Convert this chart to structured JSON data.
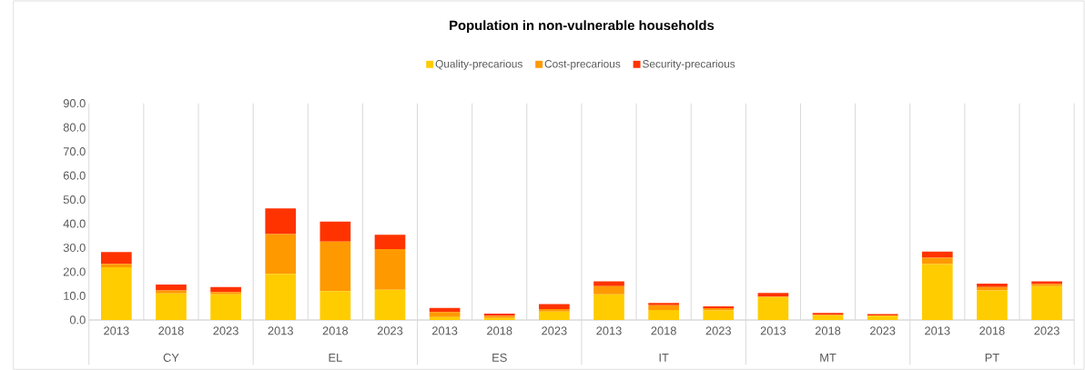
{
  "chart_data": {
    "type": "bar",
    "title": "Population in non-vulnerable households",
    "categories": [
      "2013",
      "2018",
      "2023",
      "2013",
      "2018",
      "2023",
      "2013",
      "2018",
      "2023",
      "2013",
      "2018",
      "2023",
      "2013",
      "2018",
      "2023",
      "2013",
      "2018",
      "2023"
    ],
    "annotations": [
      "CY",
      "EL",
      "ES",
      "IT",
      "MT",
      "PT"
    ],
    "stacked": true,
    "series": [
      {
        "name": "Quality-precarious",
        "color": "#ffcc00",
        "values": [
          21.9,
          11.0,
          10.6,
          19.1,
          12.0,
          12.5,
          1.2,
          0.8,
          3.5,
          10.6,
          4.1,
          3.9,
          9.5,
          2.0,
          1.8,
          23.2,
          12.2,
          14.0
        ]
      },
      {
        "name": "Cost-precarious",
        "color": "#ff9900",
        "values": [
          1.4,
          1.2,
          1.0,
          16.6,
          20.5,
          16.9,
          2.1,
          0.9,
          1.0,
          3.4,
          2.0,
          1.0,
          0.2,
          null,
          null,
          2.6,
          1.5,
          0.9
        ]
      },
      {
        "name": "Security-precarious",
        "color": "#ff3300",
        "values": [
          4.9,
          2.5,
          2.1,
          10.6,
          8.4,
          6.0,
          1.7,
          0.9,
          2.1,
          2.0,
          0.9,
          0.7,
          1.5,
          0.9,
          0.6,
          2.6,
          1.4,
          1.1
        ]
      }
    ],
    "ylim": [
      0,
      90
    ],
    "yticks": [
      {
        "value": 0,
        "label": "0.0"
      },
      {
        "value": 10,
        "label": "10.0"
      },
      {
        "value": 20,
        "label": "20.0"
      },
      {
        "value": 30,
        "label": "30.0"
      },
      {
        "value": 40,
        "label": "40.0"
      },
      {
        "value": 50,
        "label": "50.0"
      },
      {
        "value": 60,
        "label": "60.0"
      },
      {
        "value": 70,
        "label": "70.0"
      },
      {
        "value": 80,
        "label": "80.0"
      },
      {
        "value": 90,
        "label": "90.0"
      }
    ],
    "grid": "x",
    "legend": "top"
  }
}
